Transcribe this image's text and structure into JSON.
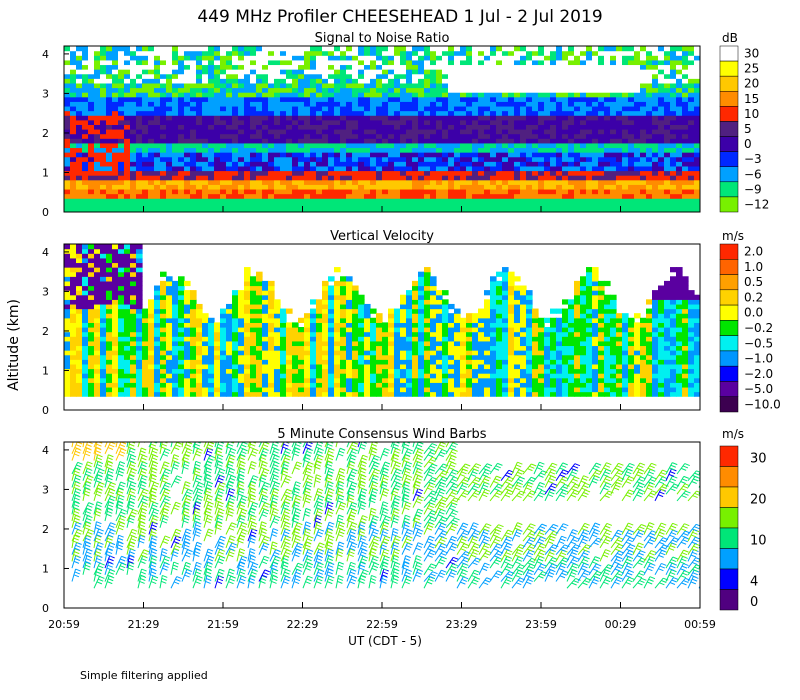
{
  "title": "449 MHz Profiler CHEESEHEAD  1 Jul -  2 Jul 2019",
  "footnote": "Simple filtering applied",
  "shared_ylabel": "Altitude (km)",
  "chart_data": [
    {
      "type": "heatmap",
      "title": "Signal to Noise Ratio",
      "xlabel": "",
      "ylabel": "Altitude (km)",
      "xlim": [
        "20:59",
        "00:59"
      ],
      "ylim": [
        0,
        4.2
      ],
      "yticks": [
        0,
        1,
        2,
        3,
        4
      ],
      "colorbar": {
        "unit": "dB",
        "labels": [
          "30",
          "25",
          "20",
          "15",
          "10",
          "5",
          "0",
          "−3",
          "−6",
          "−9",
          "−12"
        ]
      },
      "colors": [
        "#ffffff",
        "#ffff00",
        "#ffc800",
        "#ff8c00",
        "#ff2800",
        "#502080",
        "#3c00a8",
        "#0028ff",
        "#00a0ff",
        "#00e678",
        "#78f000"
      ]
    },
    {
      "type": "heatmap",
      "title": "Vertical Velocity",
      "xlabel": "",
      "ylabel": "Altitude (km)",
      "xlim": [
        "20:59",
        "00:59"
      ],
      "ylim": [
        0,
        4.2
      ],
      "yticks": [
        0,
        1,
        2,
        3,
        4
      ],
      "colorbar": {
        "unit": "m/s",
        "labels": [
          "2.0",
          "1.0",
          "0.5",
          "0.2",
          "0.0",
          "−0.2",
          "−0.5",
          "−1.0",
          "−2.0",
          "−5.0",
          "−10.0"
        ]
      },
      "colors": [
        "#ff2800",
        "#ff6400",
        "#ffa000",
        "#ffd200",
        "#ffff00",
        "#00e600",
        "#00f0f0",
        "#0096ff",
        "#0000ff",
        "#5a00a0",
        "#3c0050"
      ]
    },
    {
      "type": "scatter",
      "title": "5 Minute Consensus Wind Barbs",
      "xlabel": "UT  (CDT - 5)",
      "ylabel": "Altitude (km)",
      "xlim": [
        "20:59",
        "00:59"
      ],
      "ylim": [
        0,
        4.2
      ],
      "yticks": [
        0,
        1,
        2,
        3,
        4
      ],
      "colorbar": {
        "unit": "m/s",
        "labels": [
          "30",
          "20",
          "10",
          "4",
          "0"
        ]
      },
      "colors": [
        "#ff2800",
        "#ff8c00",
        "#ffc800",
        "#78f000",
        "#00e678",
        "#00a0ff",
        "#0000ff",
        "#500080"
      ]
    }
  ],
  "xticks": [
    "20:59",
    "21:29",
    "21:59",
    "22:29",
    "22:59",
    "23:29",
    "23:59",
    "00:29",
    "00:59"
  ]
}
